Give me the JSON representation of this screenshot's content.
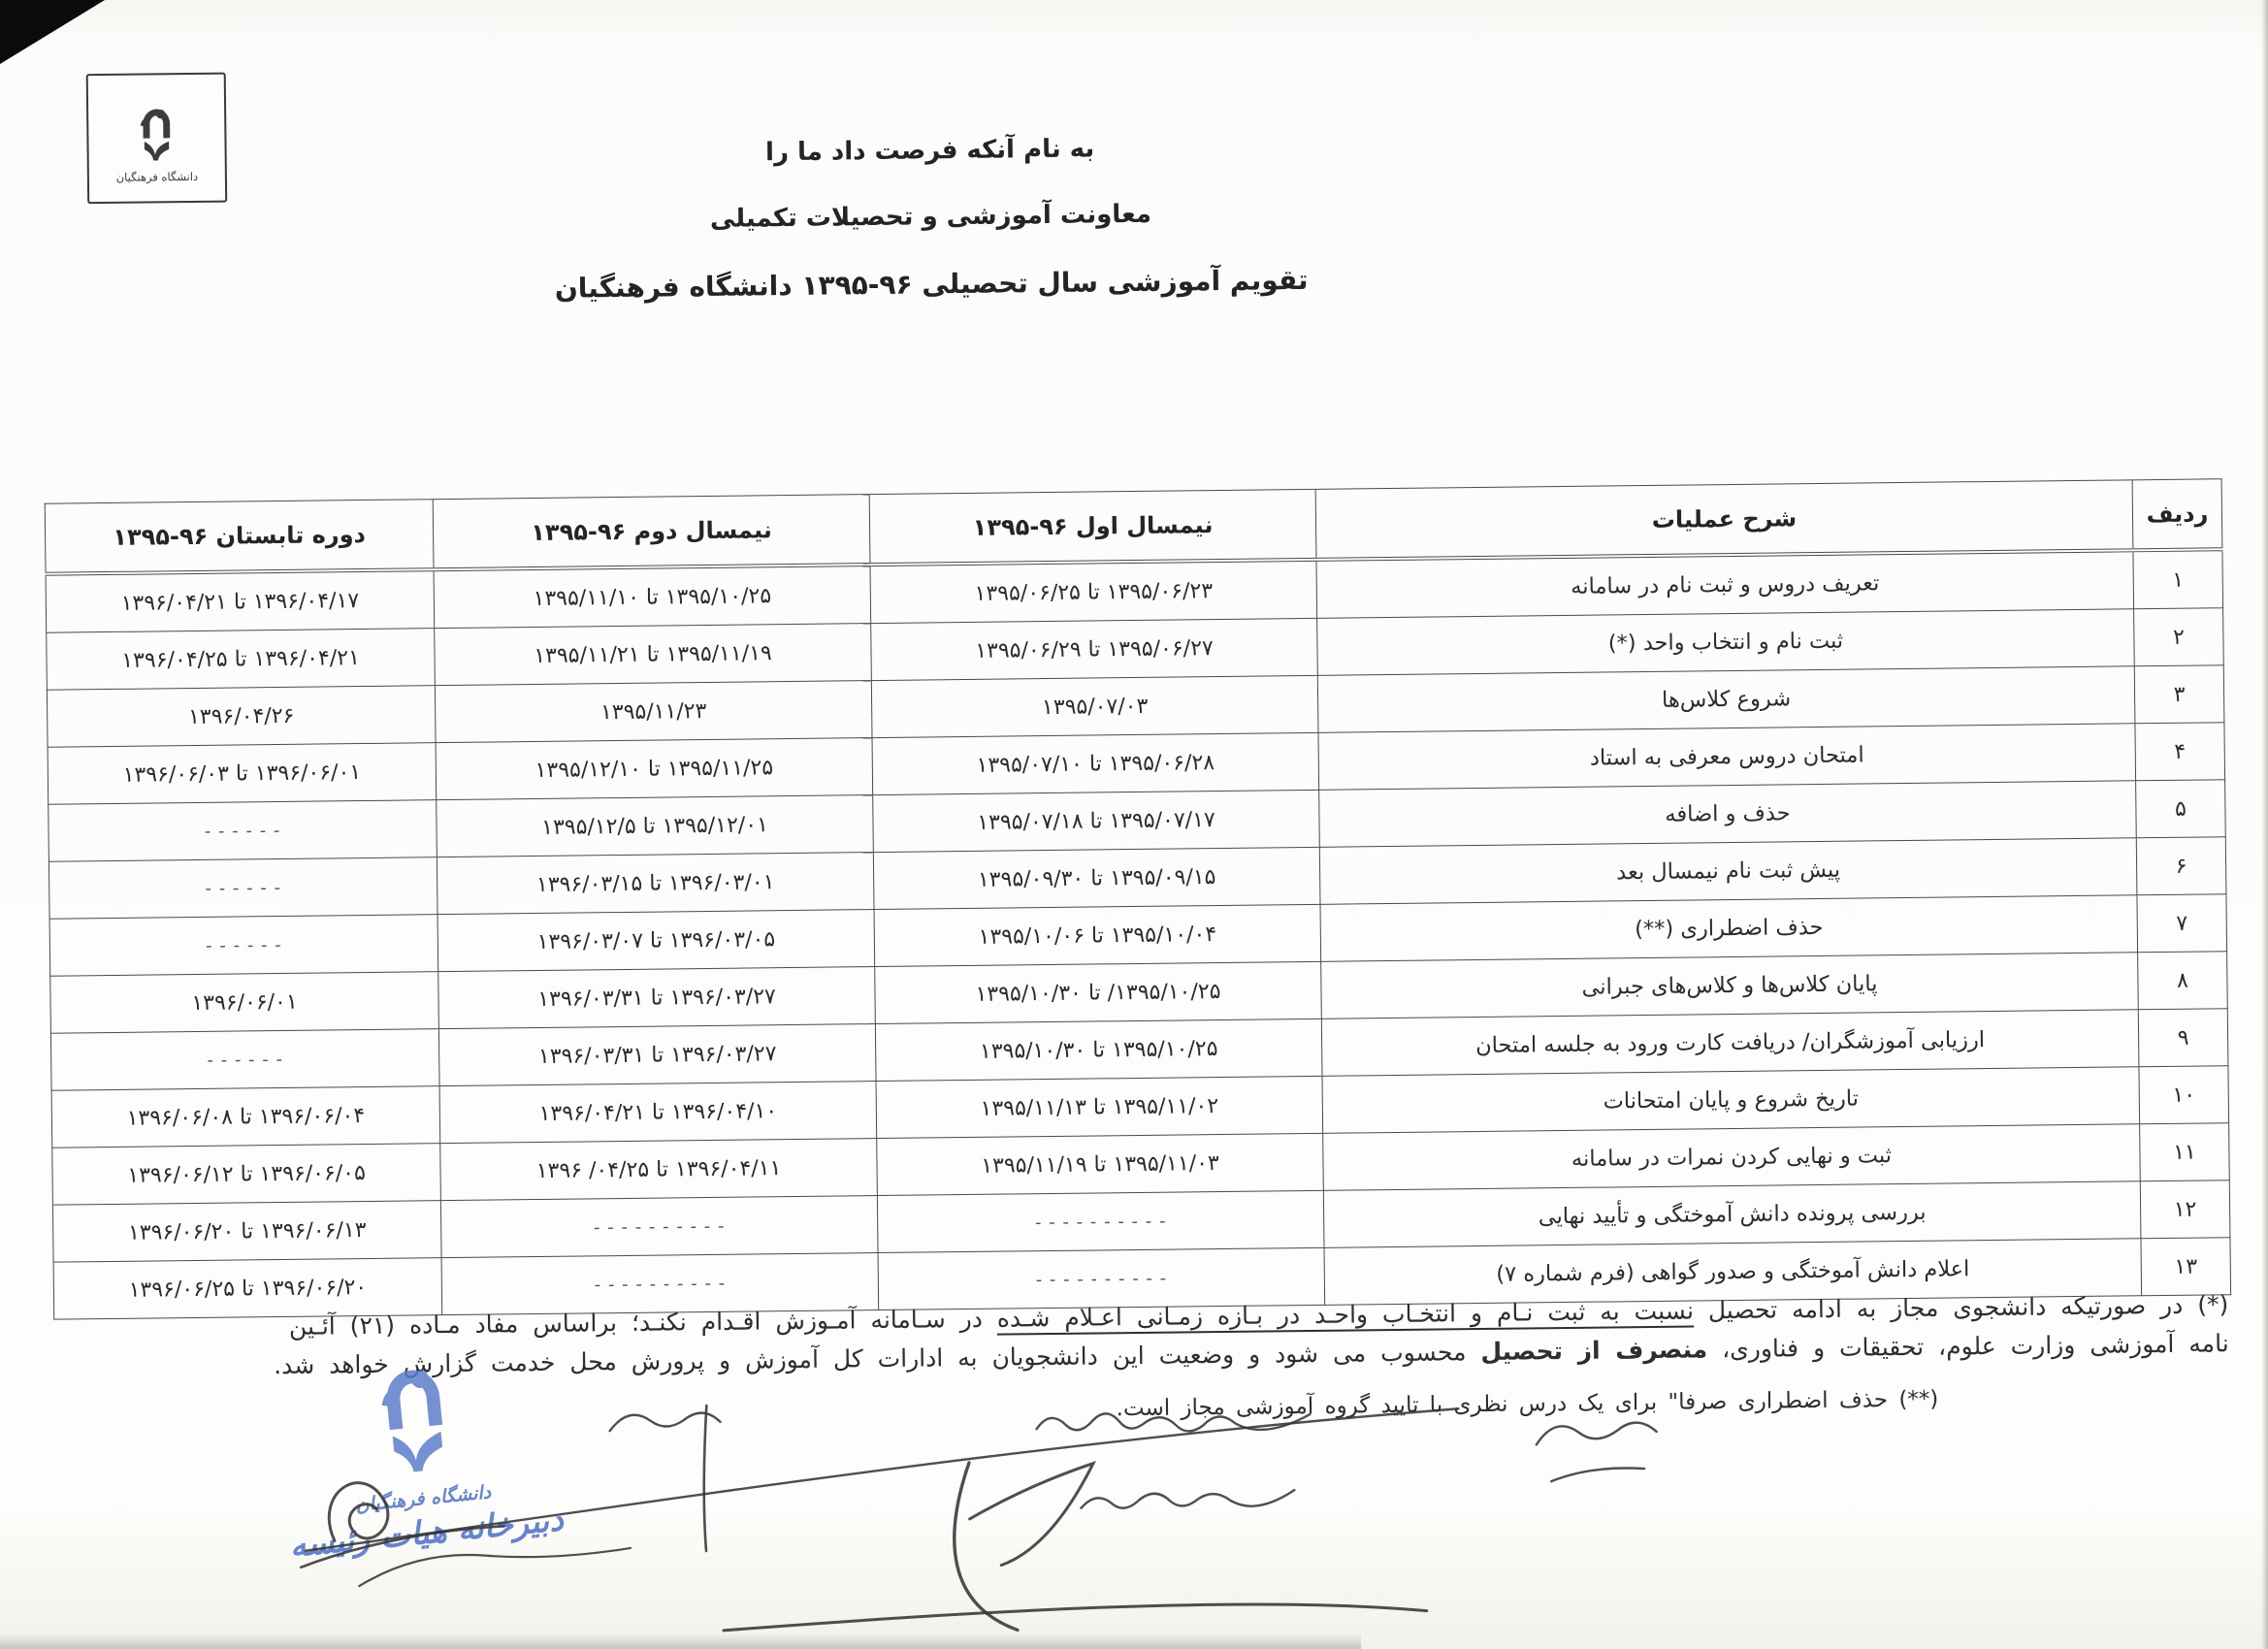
{
  "document": {
    "header": {
      "line1": "به نام آنکه فرصت داد ما را",
      "line2": "معاونت آموزشی و تحصیلات تکمیلی",
      "line3": "تقویم آموزشی سال تحصیلی ۹۶-۱۳۹۵ دانشگاه فرهنگیان"
    },
    "logo": {
      "caption": "دانشگاه فرهنگیان"
    },
    "ink_color": "#2b2b2b",
    "stamp_color": "#5b7ccb"
  },
  "table": {
    "columns": {
      "row_no": "ردیف",
      "operation": "شرح عملیات",
      "sem1": "نیمسال اول ۹۶-۱۳۹۵",
      "sem2": "نیمسال دوم ۹۶-۱۳۹۵",
      "summer": "دوره تابستان ۹۶-۱۳۹۵"
    },
    "rows": [
      {
        "no": "۱",
        "operation": "تعریف دروس و ثبت نام در سامانه",
        "sem1": "۱۳۹۵/۰۶/۲۳ تا ۱۳۹۵/۰۶/۲۵",
        "sem2": "۱۳۹۵/۱۰/۲۵ تا ۱۳۹۵/۱۱/۱۰",
        "summer": "۱۳۹۶/۰۴/۱۷ تا ۱۳۹۶/۰۴/۲۱"
      },
      {
        "no": "۲",
        "operation": "ثبت نام و انتخاب واحد (*)",
        "sem1": "۱۳۹۵/۰۶/۲۷ تا ۱۳۹۵/۰۶/۲۹",
        "sem2": "۱۳۹۵/۱۱/۱۹ تا ۱۳۹۵/۱۱/۲۱",
        "summer": "۱۳۹۶/۰۴/۲۱ تا ۱۳۹۶/۰۴/۲۵"
      },
      {
        "no": "۳",
        "operation": "شروع کلاس‌ها",
        "sem1": "۱۳۹۵/۰۷/۰۳",
        "sem2": "۱۳۹۵/۱۱/۲۳",
        "summer": "۱۳۹۶/۰۴/۲۶"
      },
      {
        "no": "۴",
        "operation": "امتحان دروس معرفی به استاد",
        "sem1": "۱۳۹۵/۰۶/۲۸ تا ۱۳۹۵/۰۷/۱۰",
        "sem2": "۱۳۹۵/۱۱/۲۵ تا ۱۳۹۵/۱۲/۱۰",
        "summer": "۱۳۹۶/۰۶/۰۱ تا ۱۳۹۶/۰۶/۰۳"
      },
      {
        "no": "۵",
        "operation": "حذف و اضافه",
        "sem1": "۱۳۹۵/۰۷/۱۷ تا ۱۳۹۵/۰۷/۱۸",
        "sem2": "۱۳۹۵/۱۲/۰۱ تا ۱۳۹۵/۱۲/۵",
        "summer": "- - - - - -"
      },
      {
        "no": "۶",
        "operation": "پیش ثبت نام نیمسال بعد",
        "sem1": "۱۳۹۵/۰۹/۱۵ تا ۱۳۹۵/۰۹/۳۰",
        "sem2": "۱۳۹۶/۰۳/۰۱ تا ۱۳۹۶/۰۳/۱۵",
        "summer": "- - - - - -"
      },
      {
        "no": "۷",
        "operation": "حذف اضطراری (**)",
        "sem1": "۱۳۹۵/۱۰/۰۴ تا ۱۳۹۵/۱۰/۰۶",
        "sem2": "۱۳۹۶/۰۳/۰۵ تا ۱۳۹۶/۰۳/۰۷",
        "summer": "- - - - - -"
      },
      {
        "no": "۸",
        "operation": "پایان کلاس‌ها و کلاس‌های جبرانی",
        "sem1": "۱۳۹۵/۱۰/۲۵/ تا ۱۳۹۵/۱۰/۳۰",
        "sem2": "۱۳۹۶/۰۳/۲۷ تا ۱۳۹۶/۰۳/۳۱",
        "summer": "۱۳۹۶/۰۶/۰۱"
      },
      {
        "no": "۹",
        "operation": "ارزیابی آموزشگران/ دریافت کارت ورود به جلسه امتحان",
        "sem1": "۱۳۹۵/۱۰/۲۵ تا ۱۳۹۵/۱۰/۳۰",
        "sem2": "۱۳۹۶/۰۳/۲۷ تا ۱۳۹۶/۰۳/۳۱",
        "summer": "- - - - - -"
      },
      {
        "no": "۱۰",
        "operation": "تاریخ شروع و پایان امتحانات",
        "sem1": "۱۳۹۵/۱۱/۰۲ تا ۱۳۹۵/۱۱/۱۳",
        "sem2": "۱۳۹۶/۰۴/۱۰ تا ۱۳۹۶/۰۴/۲۱",
        "summer": "۱۳۹۶/۰۶/۰۴ تا ۱۳۹۶/۰۶/۰۸"
      },
      {
        "no": "۱۱",
        "operation": "ثبت و نهایی کردن نمرات در سامانه",
        "sem1": "۱۳۹۵/۱۱/۰۳ تا ۱۳۹۵/۱۱/۱۹",
        "sem2": "۱۳۹۶/۰۴/۱۱ تا ‎۱۳۹۶ /۰۴/۲۵‎",
        "summer": "۱۳۹۶/۰۶/۰۵ تا ۱۳۹۶/۰۶/۱۲"
      },
      {
        "no": "۱۲",
        "operation": "بررسی پرونده دانش آموختگی و تأیید نهایی",
        "sem1": "- - - - - - - - - -",
        "sem2": "- - - - - - - - - -",
        "summer": "۱۳۹۶/۰۶/۱۳ تا ۱۳۹۶/۰۶/۲۰"
      },
      {
        "no": "۱۳",
        "operation": "اعلام دانش آموختگی و صدور گواهی (فرم شماره ۷)",
        "sem1": "- - - - - - - - - -",
        "sem2": "- - - - - - - - - -",
        "summer": "۱۳۹۶/۰۶/۲۰ تا ۱۳۹۶/۰۶/۲۵"
      }
    ]
  },
  "footnotes": {
    "star": {
      "p1": "(*) در صورتیکه دانشجوی مجاز به ادامه تحصیل  ",
      "underlined": "نسبت به ثبت نـام و انتخـاب واحـد در بـازه زمـانی اعـلام شـده",
      "p2": " در سـامانه آمـوزش اقـدام نکنـد؛ براساس مفاد مـاده (۲۱) آئـین",
      "p3": "نامه آموزشی وزارت علوم، تحقیقات و فناوری، ",
      "bold": "منصرف از تحصیل",
      "p4": " محسوب می شود و وضعیت این دانشجویان به ادارات کل آموزش و پرورش محل خدمت گزارش خواهد شد."
    },
    "double_star": "(**) حذف اضطراری صرفا\" برای یک درس نظری با تایید گروه آموزشی مجاز است."
  },
  "stamp": {
    "title": "دانشگاه فرهنگیان",
    "subtitle": "دبیرخانه هیات رئیسه"
  }
}
